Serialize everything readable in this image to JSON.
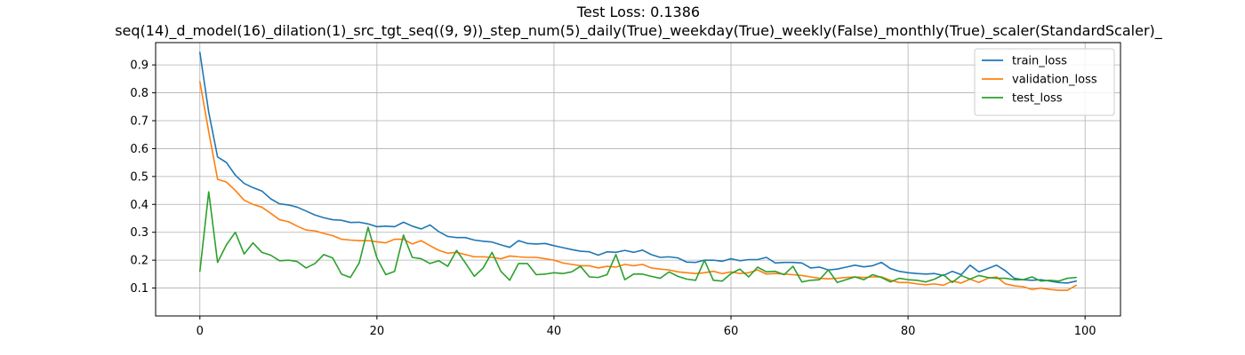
{
  "chart_data": {
    "type": "line",
    "title": "Test Loss: 0.1386",
    "subtitle": "seq(14)_d_model(16)_dilation(1)_src_tgt_seq((9, 9))_step_num(5)_daily(True)_weekday(True)_weekly(False)_monthly(True)_scaler(StandardScaler)_",
    "xlabel": "",
    "ylabel": "",
    "xlim": [
      -5,
      104
    ],
    "ylim": [
      0,
      0.98
    ],
    "xticks": [
      0,
      20,
      40,
      60,
      80,
      100
    ],
    "yticks": [
      0.1,
      0.2,
      0.3,
      0.4,
      0.5,
      0.6,
      0.7,
      0.8,
      0.9
    ],
    "grid": true,
    "legend_position": "top-right",
    "x": [
      0,
      1,
      2,
      3,
      4,
      5,
      6,
      7,
      8,
      9,
      10,
      11,
      12,
      13,
      14,
      15,
      16,
      17,
      18,
      19,
      20,
      21,
      22,
      23,
      24,
      25,
      26,
      27,
      28,
      29,
      30,
      31,
      32,
      33,
      34,
      35,
      36,
      37,
      38,
      39,
      40,
      41,
      42,
      43,
      44,
      45,
      46,
      47,
      48,
      49,
      50,
      51,
      52,
      53,
      54,
      55,
      56,
      57,
      58,
      59,
      60,
      61,
      62,
      63,
      64,
      65,
      66,
      67,
      68,
      69,
      70,
      71,
      72,
      73,
      74,
      75,
      76,
      77,
      78,
      79,
      80,
      81,
      82,
      83,
      84,
      85,
      86,
      87,
      88,
      89,
      90,
      91,
      92,
      93,
      94,
      95,
      96,
      97,
      98,
      99
    ],
    "series": [
      {
        "name": "train_loss",
        "color": "#1f77b4",
        "values": [
          0.945,
          0.73,
          0.57,
          0.55,
          0.505,
          0.475,
          0.46,
          0.448,
          0.42,
          0.402,
          0.398,
          0.39,
          0.376,
          0.362,
          0.352,
          0.345,
          0.343,
          0.335,
          0.336,
          0.33,
          0.32,
          0.322,
          0.32,
          0.336,
          0.322,
          0.312,
          0.326,
          0.302,
          0.285,
          0.281,
          0.281,
          0.272,
          0.268,
          0.265,
          0.255,
          0.246,
          0.27,
          0.26,
          0.258,
          0.26,
          0.252,
          0.245,
          0.238,
          0.232,
          0.23,
          0.218,
          0.23,
          0.228,
          0.235,
          0.228,
          0.236,
          0.22,
          0.21,
          0.212,
          0.208,
          0.193,
          0.192,
          0.2,
          0.2,
          0.196,
          0.205,
          0.198,
          0.202,
          0.202,
          0.21,
          0.19,
          0.192,
          0.192,
          0.19,
          0.172,
          0.175,
          0.165,
          0.168,
          0.175,
          0.182,
          0.176,
          0.18,
          0.192,
          0.17,
          0.16,
          0.155,
          0.152,
          0.15,
          0.152,
          0.145,
          0.16,
          0.148,
          0.182,
          0.158,
          0.17,
          0.182,
          0.162,
          0.135,
          0.13,
          0.128,
          0.13,
          0.125,
          0.12,
          0.118,
          0.125
        ]
      },
      {
        "name": "validation_loss",
        "color": "#ff7f0e",
        "values": [
          0.84,
          0.66,
          0.49,
          0.48,
          0.45,
          0.415,
          0.4,
          0.39,
          0.368,
          0.345,
          0.338,
          0.322,
          0.308,
          0.305,
          0.296,
          0.288,
          0.275,
          0.272,
          0.27,
          0.27,
          0.266,
          0.262,
          0.275,
          0.275,
          0.258,
          0.27,
          0.252,
          0.235,
          0.225,
          0.228,
          0.22,
          0.212,
          0.212,
          0.21,
          0.205,
          0.215,
          0.212,
          0.21,
          0.21,
          0.205,
          0.2,
          0.19,
          0.185,
          0.18,
          0.18,
          0.172,
          0.178,
          0.175,
          0.185,
          0.18,
          0.185,
          0.172,
          0.168,
          0.165,
          0.158,
          0.155,
          0.152,
          0.155,
          0.16,
          0.152,
          0.158,
          0.152,
          0.155,
          0.165,
          0.15,
          0.152,
          0.15,
          0.148,
          0.145,
          0.14,
          0.135,
          0.133,
          0.135,
          0.138,
          0.14,
          0.138,
          0.14,
          0.14,
          0.128,
          0.12,
          0.12,
          0.115,
          0.112,
          0.115,
          0.11,
          0.125,
          0.118,
          0.132,
          0.12,
          0.135,
          0.14,
          0.115,
          0.108,
          0.105,
          0.095,
          0.1,
          0.095,
          0.092,
          0.092,
          0.11
        ]
      },
      {
        "name": "test_loss",
        "color": "#2ca02c",
        "values": [
          0.16,
          0.445,
          0.192,
          0.255,
          0.3,
          0.222,
          0.262,
          0.228,
          0.218,
          0.198,
          0.2,
          0.195,
          0.172,
          0.188,
          0.22,
          0.208,
          0.15,
          0.138,
          0.19,
          0.318,
          0.208,
          0.148,
          0.16,
          0.29,
          0.21,
          0.205,
          0.188,
          0.198,
          0.178,
          0.235,
          0.19,
          0.142,
          0.172,
          0.228,
          0.16,
          0.128,
          0.188,
          0.188,
          0.148,
          0.15,
          0.155,
          0.152,
          0.158,
          0.178,
          0.14,
          0.138,
          0.148,
          0.22,
          0.13,
          0.15,
          0.15,
          0.142,
          0.135,
          0.158,
          0.142,
          0.132,
          0.128,
          0.2,
          0.128,
          0.125,
          0.152,
          0.168,
          0.14,
          0.175,
          0.158,
          0.16,
          0.148,
          0.178,
          0.122,
          0.128,
          0.13,
          0.165,
          0.12,
          0.13,
          0.14,
          0.13,
          0.148,
          0.138,
          0.122,
          0.135,
          0.13,
          0.128,
          0.122,
          0.132,
          0.148,
          0.12,
          0.145,
          0.132,
          0.145,
          0.138,
          0.135,
          0.135,
          0.13,
          0.13,
          0.14,
          0.125,
          0.128,
          0.125,
          0.135,
          0.138
        ]
      }
    ]
  }
}
